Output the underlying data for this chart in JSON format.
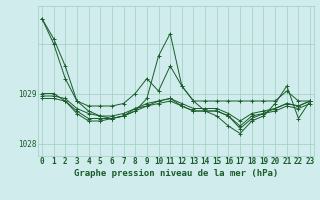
{
  "xlabel": "Graphe pression niveau de la mer (hPa)",
  "hours": [
    0,
    1,
    2,
    3,
    4,
    5,
    6,
    7,
    8,
    9,
    10,
    11,
    12,
    13,
    14,
    15,
    16,
    17,
    18,
    19,
    20,
    21,
    22,
    23
  ],
  "series": [
    [
      1030.5,
      1030.1,
      1029.55,
      1028.85,
      1028.75,
      1028.75,
      1028.75,
      1028.8,
      1029.0,
      1029.3,
      1029.05,
      1029.55,
      1029.15,
      1028.85,
      1028.85,
      1028.85,
      1028.85,
      1028.85,
      1028.85,
      1028.85,
      1028.85,
      1029.05,
      1028.85,
      1028.85
    ],
    [
      1029.0,
      1029.0,
      1028.85,
      1028.6,
      1028.45,
      1028.45,
      1028.5,
      1028.55,
      1028.7,
      1028.8,
      1028.85,
      1028.9,
      1028.75,
      1028.65,
      1028.65,
      1028.65,
      1028.55,
      1028.3,
      1028.5,
      1028.6,
      1028.7,
      1028.8,
      1028.75,
      1028.85
    ],
    [
      1028.95,
      1028.95,
      1028.9,
      1028.7,
      1028.6,
      1028.55,
      1028.55,
      1028.6,
      1028.7,
      1028.75,
      1028.85,
      1028.9,
      1028.8,
      1028.7,
      1028.7,
      1028.7,
      1028.6,
      1028.45,
      1028.6,
      1028.65,
      1028.7,
      1028.8,
      1028.75,
      1028.85
    ],
    [
      1028.9,
      1028.9,
      1028.85,
      1028.65,
      1028.5,
      1028.5,
      1028.5,
      1028.55,
      1028.65,
      1028.75,
      1028.8,
      1028.85,
      1028.75,
      1028.65,
      1028.65,
      1028.65,
      1028.55,
      1028.35,
      1028.55,
      1028.6,
      1028.65,
      1028.75,
      1028.7,
      1028.8
    ],
    [
      1030.5,
      1030.0,
      1029.3,
      1028.85,
      1028.65,
      1028.55,
      1028.5,
      1028.55,
      1028.65,
      1028.9,
      1029.75,
      1030.2,
      1029.15,
      1028.85,
      1028.65,
      1028.55,
      1028.35,
      1028.2,
      1028.45,
      1028.55,
      1028.8,
      1029.15,
      1028.5,
      1028.85
    ]
  ],
  "bg_color": "#d0ecec",
  "grid_color": "#9ecfbf",
  "line_color": "#1a5c2a",
  "marker": "+",
  "markersize": 3,
  "linewidth": 0.7,
  "yticks": [
    1028,
    1029
  ],
  "ylim": [
    1027.75,
    1030.75
  ],
  "xlim": [
    -0.3,
    23.3
  ],
  "tick_fontsize": 5.5,
  "label_fontsize": 6.5
}
